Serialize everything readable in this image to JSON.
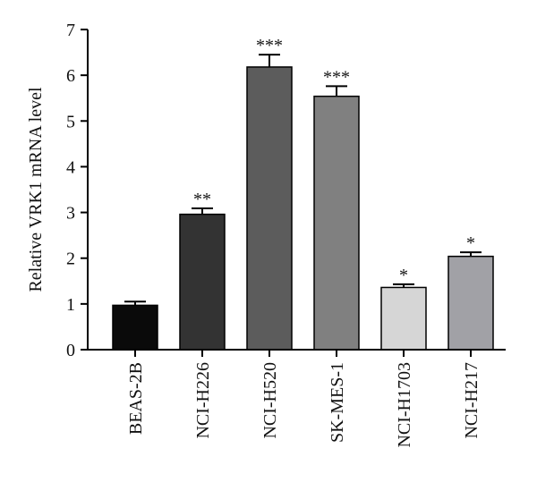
{
  "chart_data": {
    "type": "bar",
    "title": "",
    "xlabel": "",
    "ylabel": "Relative VRK1 mRNA level",
    "ylim": [
      0,
      7
    ],
    "yticks": [
      0,
      1,
      2,
      3,
      4,
      5,
      6,
      7
    ],
    "grid": false,
    "categories": [
      "BEAS-2B",
      "NCI-H226",
      "NCI-H520",
      "SK-MES-1",
      "NCI-H1703",
      "NCI-H217"
    ],
    "values": [
      0.97,
      2.96,
      6.18,
      5.54,
      1.36,
      2.04
    ],
    "errors": [
      0.08,
      0.13,
      0.27,
      0.22,
      0.07,
      0.09
    ],
    "significance": [
      "",
      "**",
      "***",
      "***",
      "*",
      "*"
    ],
    "colors": [
      "#0a0a0a",
      "#333333",
      "#5c5c5c",
      "#808080",
      "#d6d6d6",
      "#a1a1a6"
    ]
  }
}
